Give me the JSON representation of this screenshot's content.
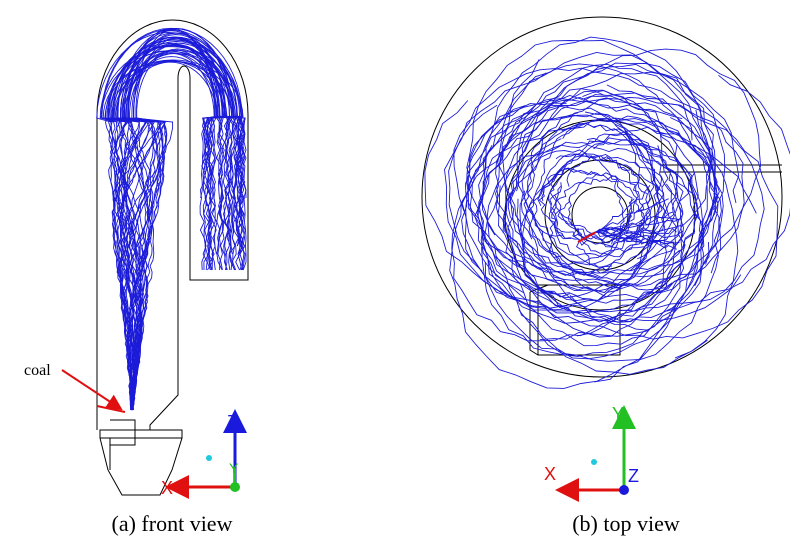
{
  "annotations": {
    "coal": "coal"
  },
  "panels": [
    {
      "caption": "(a) front view",
      "axes": {
        "x": "X",
        "y": "Y",
        "z": "Z"
      }
    },
    {
      "caption": "(b) top view",
      "axes": {
        "x": "X",
        "y": "Y",
        "z": "Z"
      }
    }
  ]
}
